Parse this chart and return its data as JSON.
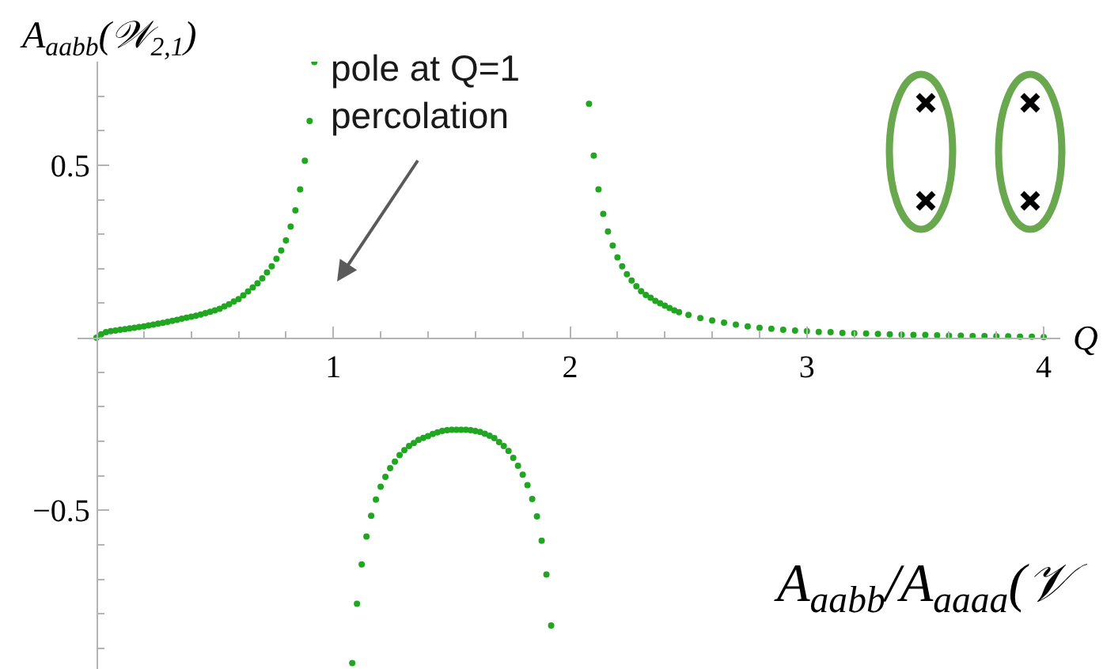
{
  "chart_data": {
    "type": "scatter",
    "xlabel": "Q",
    "ylabel": "A$_{aabb}$(𝒲$_{2,1}$)",
    "series": [
      {
        "color": "#21a621",
        "x": [
          0,
          0.02,
          0.04,
          0.06,
          0.08,
          0.1,
          0.12,
          0.14,
          0.16,
          0.18,
          0.2,
          0.22,
          0.24,
          0.26,
          0.28,
          0.3,
          0.32,
          0.34,
          0.36,
          0.38,
          0.4,
          0.42,
          0.44,
          0.46,
          0.48,
          0.5,
          0.52,
          0.54,
          0.56,
          0.58,
          0.6,
          0.62,
          0.64,
          0.66,
          0.68,
          0.7,
          0.72,
          0.74,
          0.76,
          0.78,
          0.8,
          0.82,
          0.84,
          0.86,
          0.88,
          0.9,
          0.92,
          1.08,
          1.1,
          1.12,
          1.14,
          1.16,
          1.18,
          1.2,
          1.22,
          1.24,
          1.26,
          1.28,
          1.3,
          1.32,
          1.34,
          1.36,
          1.38,
          1.4,
          1.42,
          1.44,
          1.46,
          1.48,
          1.5,
          1.52,
          1.54,
          1.56,
          1.58,
          1.6,
          1.62,
          1.64,
          1.66,
          1.68,
          1.7,
          1.72,
          1.74,
          1.76,
          1.78,
          1.8,
          1.82,
          1.84,
          1.86,
          1.88,
          1.9,
          1.92,
          2.08,
          2.1,
          2.12,
          2.14,
          2.16,
          2.18,
          2.2,
          2.22,
          2.24,
          2.26,
          2.28,
          2.3,
          2.32,
          2.34,
          2.36,
          2.38,
          2.4,
          2.42,
          2.44,
          2.46,
          2.5,
          2.55,
          2.6,
          2.65,
          2.7,
          2.75,
          2.8,
          2.85,
          2.9,
          2.95,
          3,
          3.05,
          3.1,
          3.15,
          3.2,
          3.25,
          3.3,
          3.35,
          3.4,
          3.45,
          3.5,
          3.55,
          3.6,
          3.65,
          3.7,
          3.75,
          3.8,
          3.85,
          3.9,
          3.95,
          4
        ],
        "values": [
          0,
          0.01,
          0.016,
          0.019,
          0.021,
          0.023,
          0.025,
          0.027,
          0.029,
          0.031,
          0.033,
          0.036,
          0.038,
          0.041,
          0.043,
          0.046,
          0.049,
          0.052,
          0.055,
          0.058,
          0.061,
          0.064,
          0.067,
          0.071,
          0.075,
          0.079,
          0.084,
          0.091,
          0.097,
          0.105,
          0.112,
          0.123,
          0.134,
          0.146,
          0.158,
          0.172,
          0.189,
          0.207,
          0.229,
          0.253,
          0.282,
          0.322,
          0.369,
          0.43,
          0.513,
          0.628,
          0.799,
          -0.943,
          -0.771,
          -0.657,
          -0.576,
          -0.516,
          -0.469,
          -0.432,
          -0.403,
          -0.378,
          -0.359,
          -0.34,
          -0.326,
          -0.314,
          -0.305,
          -0.296,
          -0.29,
          -0.285,
          -0.279,
          -0.274,
          -0.27,
          -0.268,
          -0.267,
          -0.267,
          -0.267,
          -0.267,
          -0.268,
          -0.27,
          -0.273,
          -0.278,
          -0.284,
          -0.291,
          -0.302,
          -0.314,
          -0.328,
          -0.348,
          -0.371,
          -0.397,
          -0.427,
          -0.467,
          -0.518,
          -0.588,
          -0.686,
          -0.834,
          0.678,
          0.528,
          0.43,
          0.359,
          0.308,
          0.267,
          0.233,
          0.207,
          0.184,
          0.166,
          0.149,
          0.135,
          0.124,
          0.116,
          0.107,
          0.1,
          0.093,
          0.086,
          0.079,
          0.074,
          0.066,
          0.057,
          0.05,
          0.044,
          0.038,
          0.033,
          0.029,
          0.026,
          0.023,
          0.021,
          0.019,
          0.017,
          0.016,
          0.014,
          0.013,
          0.012,
          0.011,
          0.01,
          0.009,
          0.008,
          0.008,
          0.007,
          0.006,
          0.006,
          0.005,
          0.005,
          0.004,
          0.004,
          0.003,
          0.003,
          0.002
        ]
      }
    ],
    "xlim": [
      -0.08,
      4.07
    ],
    "ylim": [
      -0.96,
      0.8
    ],
    "xticks": [
      {
        "value": 0.2,
        "label": null
      },
      {
        "value": 0.4,
        "label": null
      },
      {
        "value": 0.6,
        "label": null
      },
      {
        "value": 0.8,
        "label": null
      },
      1,
      {
        "value": 1.2,
        "label": null
      },
      {
        "value": 1.4,
        "label": null
      },
      {
        "value": 1.6,
        "label": null
      },
      {
        "value": 1.8,
        "label": null
      },
      2,
      {
        "value": 2.2,
        "label": null
      },
      {
        "value": 2.4,
        "label": null
      },
      {
        "value": 2.6,
        "label": null
      },
      {
        "value": 2.8,
        "label": null
      },
      3,
      {
        "value": 3.2,
        "label": null
      },
      {
        "value": 3.4,
        "label": null
      },
      {
        "value": 3.6,
        "label": null
      },
      {
        "value": 3.8,
        "label": null
      },
      4
    ],
    "yticks": [
      {
        "value": -0.9,
        "label": null
      },
      {
        "value": -0.8,
        "label": null
      },
      {
        "value": -0.7,
        "label": null
      },
      {
        "value": -0.6,
        "label": null
      },
      {
        "value": -0.5,
        "label": "−0.5"
      },
      {
        "value": -0.4,
        "label": null
      },
      {
        "value": -0.3,
        "label": null
      },
      {
        "value": -0.2,
        "label": null
      },
      {
        "value": -0.1,
        "label": null
      },
      {
        "value": 0.1,
        "label": null
      },
      {
        "value": 0.2,
        "label": null
      },
      {
        "value": 0.3,
        "label": null
      },
      {
        "value": 0.4,
        "label": null
      },
      0.5,
      {
        "value": 0.6,
        "label": null
      },
      {
        "value": 0.7,
        "label": null
      }
    ],
    "marker": "circle",
    "grid": false,
    "annotations": [
      "pole at Q=1\npercolation",
      "A$_{aabb}$/A$_{aaaa}$(𝒱"
    ]
  }
}
